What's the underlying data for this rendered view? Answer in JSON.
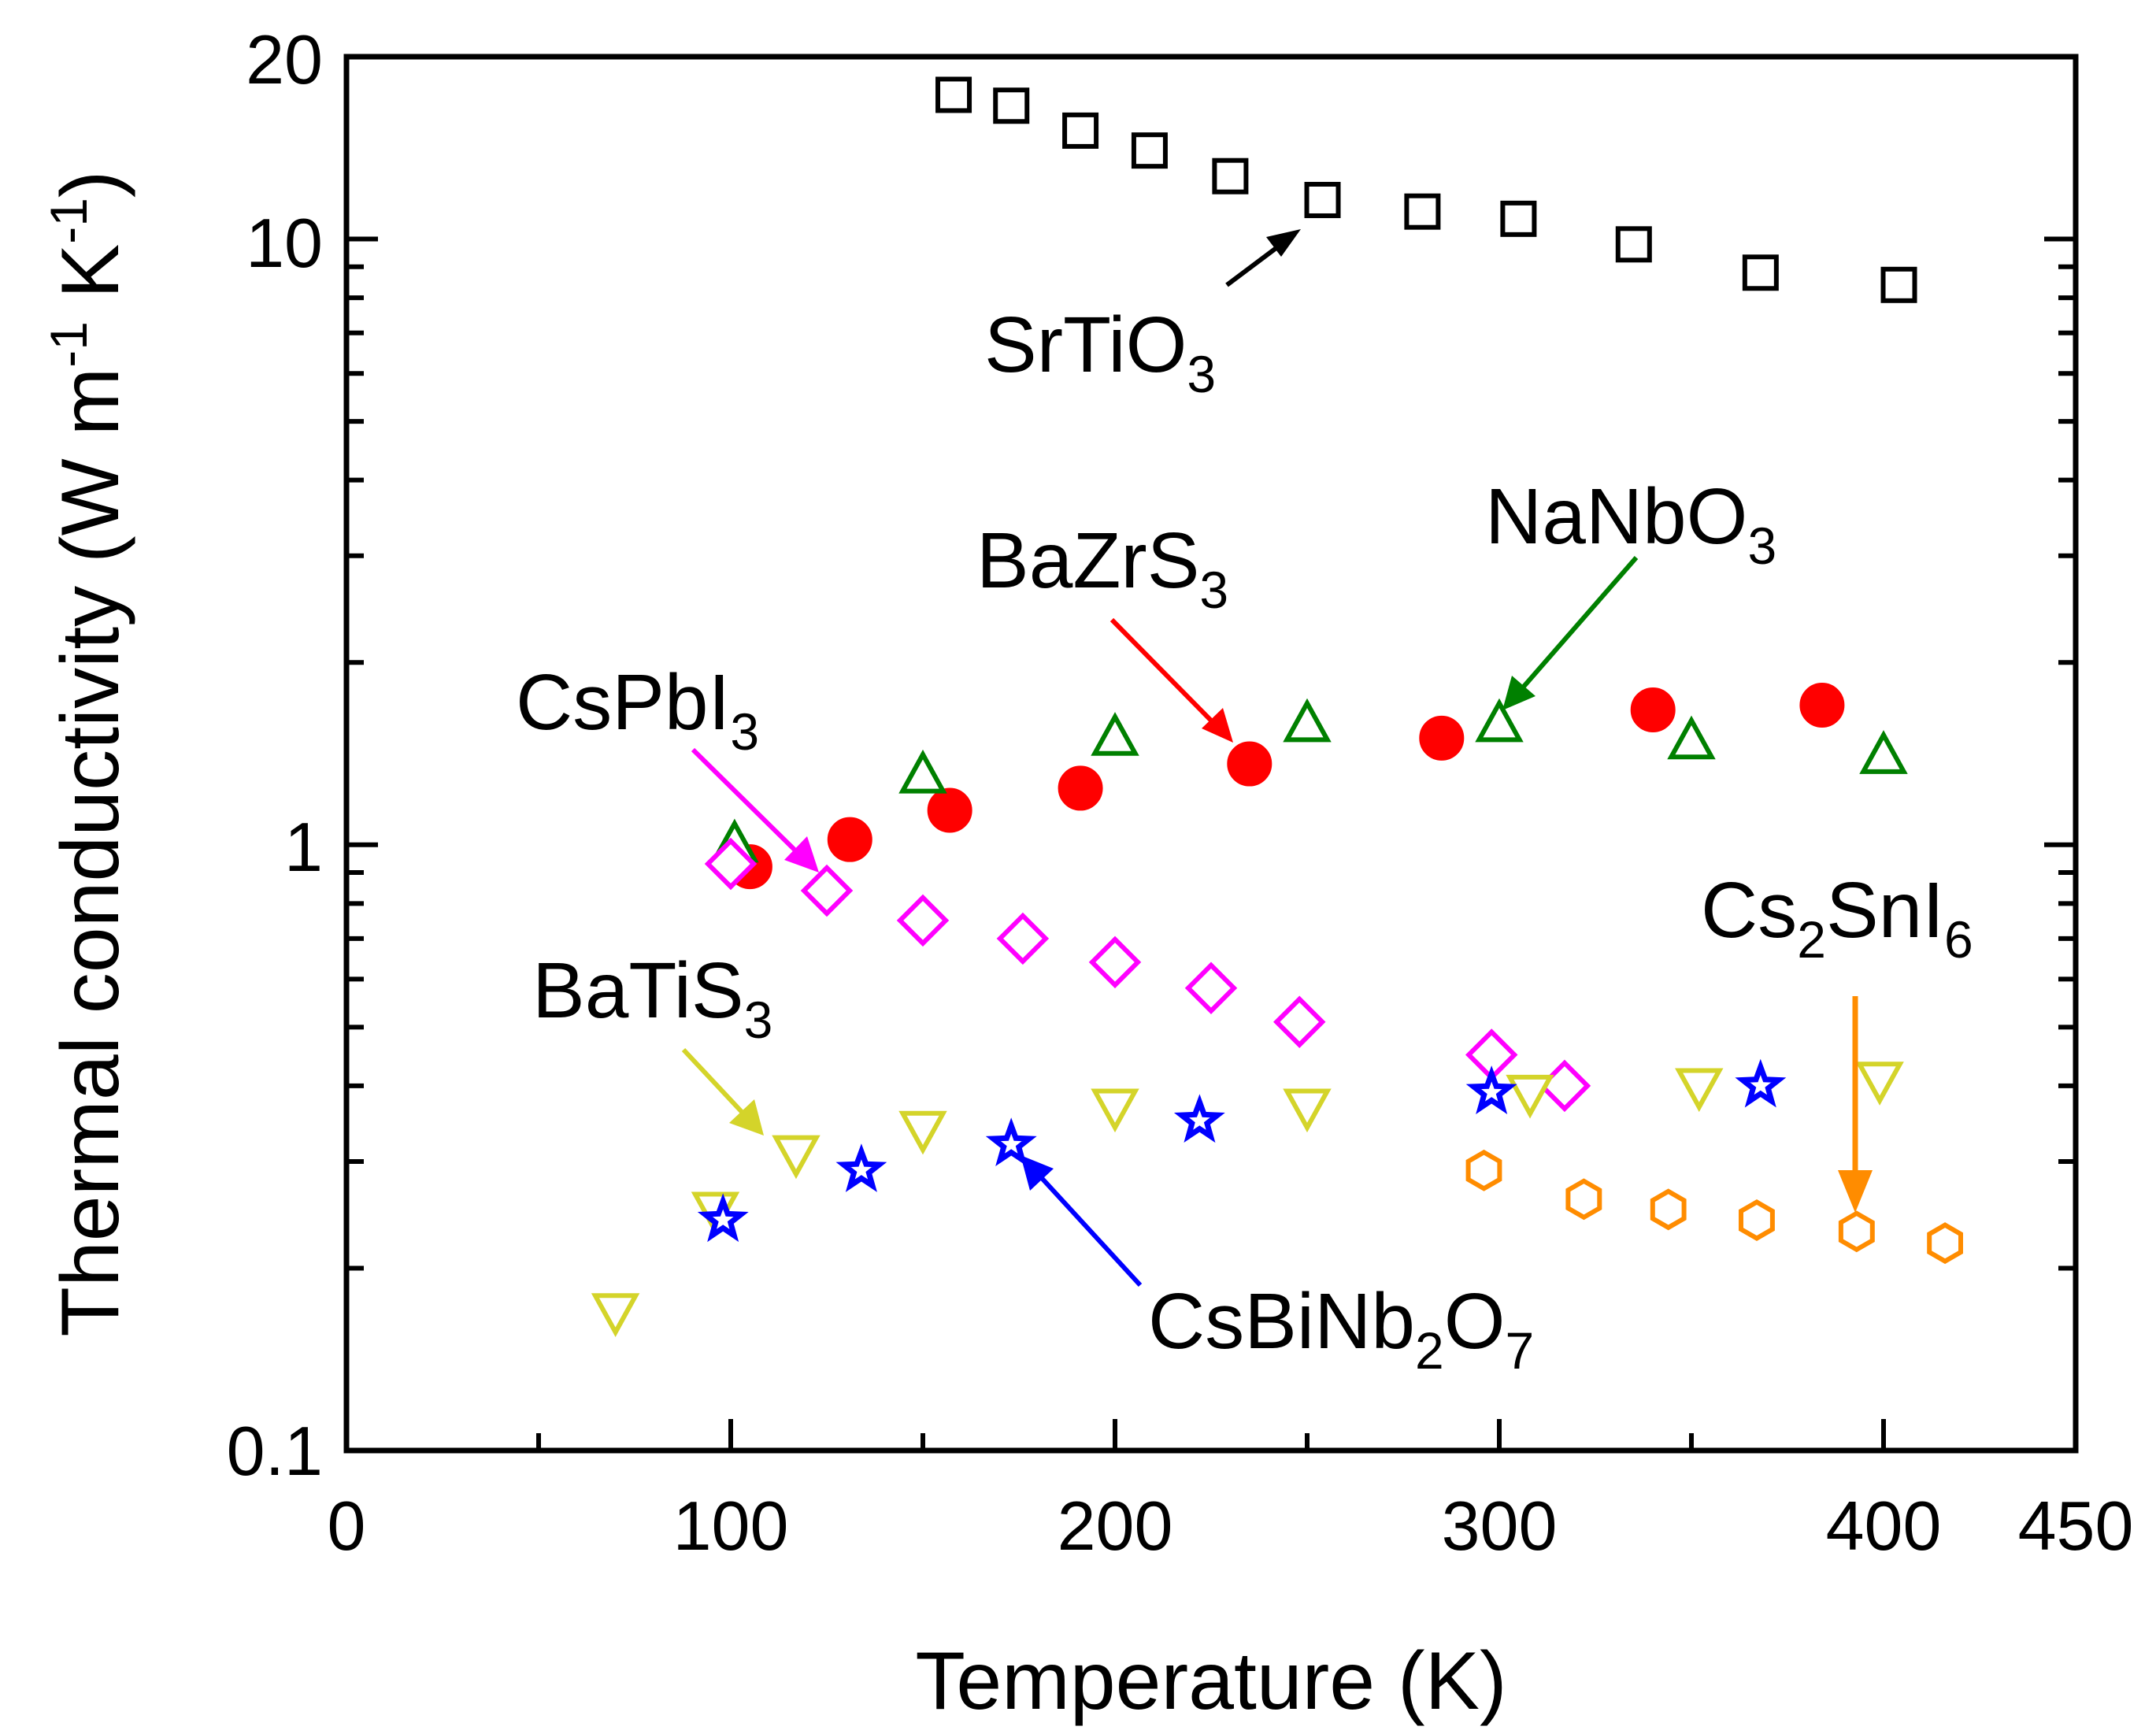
{
  "chart_data": {
    "type": "scatter",
    "xlabel": "Temperature (K)",
    "ylabel": "Thermal conductivity (W m",
    "ylabel_parts": {
      "sup1": "-1",
      "mid": " K",
      "sup2": "-1",
      "end": ")"
    },
    "xscale": "linear",
    "yscale": "log",
    "xlim": [
      0,
      450
    ],
    "ylim": [
      0.1,
      20
    ],
    "xticks": [
      0,
      100,
      200,
      300,
      400,
      450
    ],
    "xtick_labels": [
      "0",
      "100",
      "200",
      "300",
      "400",
      "450"
    ],
    "yticks": [
      0.1,
      1,
      10,
      20
    ],
    "ytick_labels": [
      "0.1",
      "1",
      "10",
      "20"
    ],
    "grid": false,
    "series": [
      {
        "name": "SrTiO3",
        "label_main": "SrTiO",
        "label_sub": "3",
        "marker": "square",
        "fill": "none",
        "color": "#000000",
        "x": [
          158,
          173,
          191,
          209,
          230,
          254,
          280,
          305,
          335,
          368,
          404
        ],
        "y": [
          17.3,
          16.6,
          15.1,
          14.0,
          12.7,
          11.6,
          11.1,
          10.8,
          9.8,
          8.8,
          8.4
        ]
      },
      {
        "name": "BaZrS3",
        "label_main": "BaZrS",
        "label_sub": "3",
        "marker": "circle",
        "fill": "filled",
        "color": "#ff0000",
        "x": [
          105,
          131,
          157,
          191,
          235,
          285,
          340,
          384
        ],
        "y": [
          0.92,
          1.02,
          1.14,
          1.24,
          1.36,
          1.5,
          1.67,
          1.7
        ]
      },
      {
        "name": "NaNbO3",
        "label_main": "NaNbO",
        "label_sub": "3",
        "marker": "triangle-up",
        "fill": "none",
        "color": "#008000",
        "x": [
          101,
          150,
          200,
          250,
          300,
          350,
          400
        ],
        "y": [
          1.0,
          1.3,
          1.5,
          1.58,
          1.58,
          1.48,
          1.4
        ]
      },
      {
        "name": "CsPbI3",
        "label_main": "CsPbI",
        "label_sub": "3",
        "marker": "diamond",
        "fill": "none",
        "color": "#ff00ff",
        "x": [
          100,
          125,
          150,
          176,
          200,
          225,
          248,
          298,
          317
        ],
        "y": [
          0.93,
          0.84,
          0.75,
          0.7,
          0.64,
          0.58,
          0.51,
          0.45,
          0.4
        ]
      },
      {
        "name": "BaTiS3",
        "label_main": "BaTiS",
        "label_sub": "3",
        "marker": "triangle-down",
        "fill": "none",
        "color": "#d4d42a",
        "x": [
          70,
          96,
          117,
          150,
          200,
          250,
          308,
          352,
          399
        ],
        "y": [
          0.17,
          0.25,
          0.31,
          0.34,
          0.37,
          0.37,
          0.39,
          0.4,
          0.41
        ]
      },
      {
        "name": "CsBiNb2O7",
        "label_main": "CsBiNb",
        "label_sub": "2",
        "label_main2": "O",
        "label_sub2": "7",
        "marker": "star",
        "fill": "none",
        "color": "#0000ff",
        "x": [
          98,
          134,
          173,
          222,
          298,
          368
        ],
        "y": [
          0.24,
          0.29,
          0.32,
          0.35,
          0.39,
          0.4
        ]
      },
      {
        "name": "Cs2SnI6",
        "label_main": "Cs",
        "label_sub": "2",
        "label_main2": "SnI",
        "label_sub2": "6",
        "marker": "hexagon",
        "fill": "none",
        "color": "#ff8c00",
        "x": [
          296,
          322,
          344,
          367,
          393,
          416
        ],
        "y": [
          0.29,
          0.26,
          0.25,
          0.24,
          0.23,
          0.22
        ]
      }
    ]
  }
}
